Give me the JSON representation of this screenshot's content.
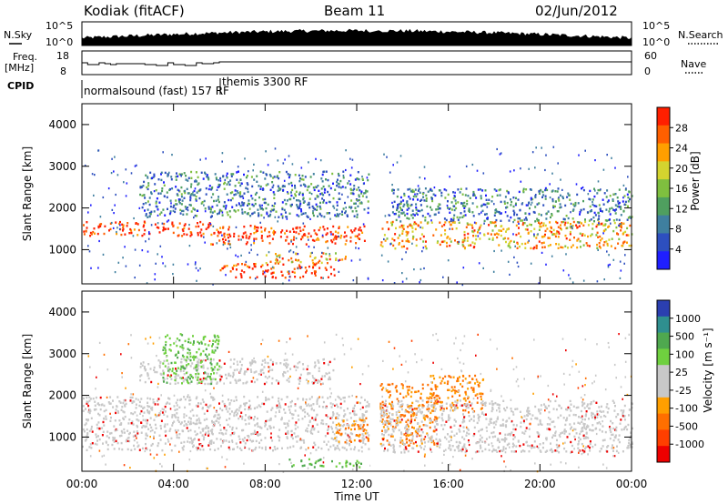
{
  "header": {
    "station": "Kodiak (fitACF)",
    "beam": "Beam 11",
    "date": "02/Jun/2012"
  },
  "top_panels": {
    "nsky_label": "N.Sky",
    "nsearch_label": "N.Search",
    "noise_ticks_left": [
      "10^5",
      "10^0"
    ],
    "noise_ticks_right": [
      "10^5",
      "10^0"
    ],
    "freq_label_1": "Freq.",
    "freq_label_2": "[MHz]",
    "freq_ticks": [
      "18",
      "8"
    ],
    "nave_label": "Nave",
    "nave_ticks": [
      "60",
      "0"
    ],
    "cpid_label": "CPID",
    "cpid_mode_1": "normalsound (fast) 157 RF",
    "cpid_mode_2": "themis 3300 RF"
  },
  "colors": {
    "power_scale": [
      "#1f1fff",
      "#2d4fbf",
      "#3f7f9f",
      "#4f9f5f",
      "#7fbf3f",
      "#d4d42f",
      "#ff9f00",
      "#ff5f00",
      "#ff1f00"
    ],
    "velocity_scale": [
      "#2b3fb0",
      "#2f8f8f",
      "#4fa84f",
      "#6fd03f",
      "#c8c8c8",
      "#c8c8c8",
      "#ff9f00",
      "#ff6f00",
      "#ff3f00",
      "#ee0000"
    ]
  },
  "chart_data": [
    {
      "type": "heatmap",
      "quantity": "Power",
      "ylabel": "Slant Range [km]",
      "xlabel": "",
      "x_range_hours": [
        0,
        24
      ],
      "ylim": [
        180,
        4500
      ],
      "y_ticks": [
        "1000",
        "2000",
        "3000",
        "4000"
      ],
      "colorbar_label": "Power [dB]",
      "colorbar_ticks": [
        "4",
        "8",
        "12",
        "16",
        "20",
        "24",
        "28"
      ],
      "data_gap_hours": [
        12.6,
        12.9
      ],
      "regions": [
        {
          "t0": 0.0,
          "t1": 5.6,
          "r0": 1350,
          "r1": 1700,
          "level": 8
        },
        {
          "t0": 5.6,
          "t1": 12.5,
          "r0": 1150,
          "r1": 1600,
          "level": 8
        },
        {
          "t0": 6.0,
          "t1": 11.0,
          "r0": 350,
          "r1": 700,
          "level": 8
        },
        {
          "t0": 8.0,
          "t1": 11.5,
          "r0": 700,
          "r1": 950,
          "level": 6
        },
        {
          "t0": 13.0,
          "t1": 24.0,
          "r0": 1050,
          "r1": 1700,
          "level": 6
        },
        {
          "t0": 2.5,
          "t1": 12.5,
          "r0": 1800,
          "r1": 2900,
          "level": 2
        },
        {
          "t0": 13.5,
          "t1": 24.0,
          "r0": 1700,
          "r1": 2500,
          "level": 2
        }
      ]
    },
    {
      "type": "heatmap",
      "quantity": "Velocity",
      "ylabel": "Slant Range [km]",
      "xlabel": "Time UT",
      "x_ticks": [
        "00:00",
        "04:00",
        "08:00",
        "12:00",
        "16:00",
        "20:00",
        "00:00"
      ],
      "x_range_hours": [
        0,
        24
      ],
      "ylim": [
        180,
        4500
      ],
      "y_ticks": [
        "1000",
        "2000",
        "3000",
        "4000"
      ],
      "colorbar_label": "Velocity [m s⁻¹]",
      "colorbar_ticks": [
        "1000",
        "500",
        "100",
        "25",
        "-25",
        "-100",
        "-500",
        "-1000"
      ],
      "data_gap_hours": [
        12.6,
        12.9
      ],
      "regions": [
        {
          "t0": 0.0,
          "t1": 12.5,
          "r0": 700,
          "r1": 2000,
          "velocity": 0
        },
        {
          "t0": 2.5,
          "t1": 11.0,
          "r0": 2300,
          "r1": 2900,
          "velocity": 0
        },
        {
          "t0": 3.5,
          "t1": 6.0,
          "r0": 2300,
          "r1": 3500,
          "velocity": 100
        },
        {
          "t0": 9.0,
          "t1": 12.5,
          "r0": 300,
          "r1": 500,
          "velocity": 100
        },
        {
          "t0": 11.0,
          "t1": 12.5,
          "r0": 900,
          "r1": 1500,
          "velocity": -500
        },
        {
          "t0": 13.0,
          "t1": 15.5,
          "r0": 800,
          "r1": 2300,
          "velocity": -500
        },
        {
          "t0": 15.0,
          "t1": 17.5,
          "r0": 1600,
          "r1": 2500,
          "velocity": -500
        },
        {
          "t0": 13.0,
          "t1": 24.0,
          "r0": 650,
          "r1": 1900,
          "velocity": 0
        }
      ]
    }
  ]
}
